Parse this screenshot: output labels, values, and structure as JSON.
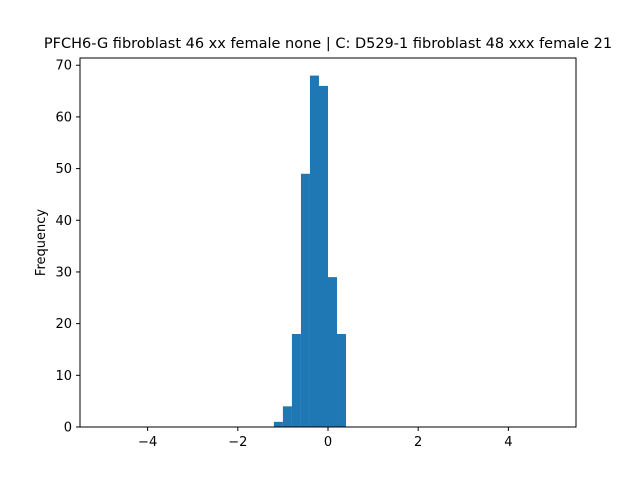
{
  "chart_data": {
    "type": "bar",
    "title": "PFCH6-G fibroblast 46 xx female none | C: D529-1 fibroblast 48 xxx female 21",
    "xlabel": "",
    "ylabel": "Frequency",
    "xlim": [
      -5.5,
      5.5
    ],
    "ylim": [
      0,
      71.4
    ],
    "xticks": [
      -4,
      -2,
      0,
      2,
      4
    ],
    "xtick_labels": [
      "−4",
      "−2",
      "0",
      "2",
      "4"
    ],
    "yticks": [
      0,
      10,
      20,
      30,
      40,
      50,
      60,
      70
    ],
    "ytick_labels": [
      "0",
      "10",
      "20",
      "30",
      "40",
      "50",
      "60",
      "70"
    ],
    "grid": false,
    "bar_color": "#1f77b4",
    "bins": [
      {
        "x0": -1.2,
        "x1": -1.0,
        "count": 1
      },
      {
        "x0": -1.0,
        "x1": -0.8,
        "count": 4
      },
      {
        "x0": -0.8,
        "x1": -0.6,
        "count": 18
      },
      {
        "x0": -0.6,
        "x1": -0.4,
        "count": 49
      },
      {
        "x0": -0.4,
        "x1": -0.2,
        "count": 68
      },
      {
        "x0": -0.2,
        "x1": 0.0,
        "count": 66
      },
      {
        "x0": 0.0,
        "x1": 0.2,
        "count": 29
      },
      {
        "x0": 0.2,
        "x1": 0.4,
        "count": 18
      }
    ]
  }
}
